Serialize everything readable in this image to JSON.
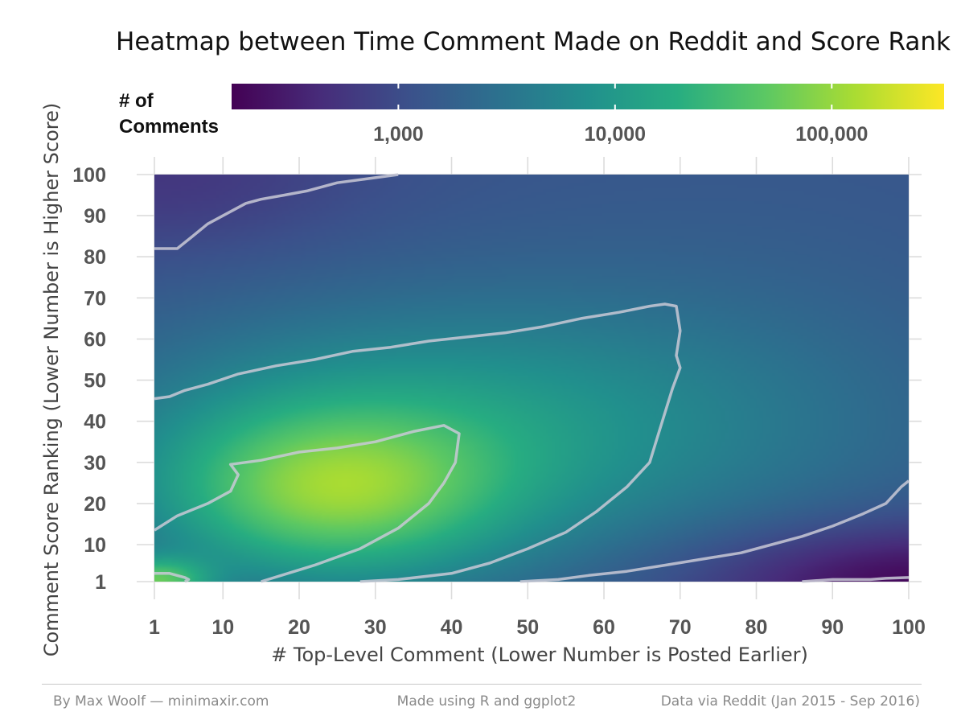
{
  "chart_data": {
    "type": "heatmap",
    "title": "Heatmap between Time Comment Made on Reddit and Score Rank",
    "xlabel": "# Top-Level Comment (Lower Number is Posted Earlier)",
    "ylabel": "Comment Score Ranking (Lower Number is Higher Score)",
    "xlim": [
      1,
      100
    ],
    "ylim": [
      1,
      100
    ],
    "x_ticks": [
      1,
      10,
      20,
      30,
      40,
      50,
      60,
      70,
      80,
      90,
      100
    ],
    "y_ticks": [
      1,
      10,
      20,
      30,
      40,
      50,
      60,
      70,
      80,
      90,
      100
    ],
    "x_tick_labels": [
      "1",
      "10",
      "20",
      "30",
      "40",
      "50",
      "60",
      "70",
      "80",
      "90",
      "100"
    ],
    "y_tick_labels": [
      "1",
      "10",
      "20",
      "30",
      "40",
      "50",
      "60",
      "70",
      "80",
      "90",
      "100"
    ],
    "legend": {
      "title_line1": "# of",
      "title_line2": "Comments",
      "scale": "log",
      "placement": "top",
      "range": [
        170,
        330000
      ],
      "tick_values": [
        1000,
        10000,
        100000
      ],
      "tick_labels": [
        "1,000",
        "10,000",
        "100,000"
      ]
    },
    "palette": [
      "#440154",
      "#472c7a",
      "#3b518b",
      "#2c718e",
      "#21908d",
      "#27ad81",
      "#5cc863",
      "#aadc32",
      "#fde725"
    ],
    "contour_color": "#c9c9d6",
    "contours": [
      {
        "name": "outer-top",
        "points": [
          [
            1,
            82
          ],
          [
            4,
            82
          ],
          [
            6,
            85
          ],
          [
            8,
            88
          ],
          [
            10,
            90
          ],
          [
            13,
            93
          ],
          [
            15,
            94
          ],
          [
            18,
            95
          ],
          [
            21,
            96
          ],
          [
            25,
            98
          ],
          [
            29,
            99
          ],
          [
            33,
            100
          ]
        ]
      },
      {
        "name": "upper-band",
        "points": [
          [
            1,
            45.5
          ],
          [
            3,
            46
          ],
          [
            5,
            47.5
          ],
          [
            8,
            49
          ],
          [
            12,
            51.5
          ],
          [
            17,
            53.5
          ],
          [
            22,
            55
          ],
          [
            27,
            57
          ],
          [
            32,
            58
          ],
          [
            37,
            59.5
          ],
          [
            42,
            60.5
          ],
          [
            47,
            61.5
          ],
          [
            52,
            63
          ],
          [
            57,
            65
          ],
          [
            62,
            66.5
          ],
          [
            66,
            68
          ],
          [
            68,
            68.5
          ],
          [
            69.5,
            68
          ],
          [
            70,
            62
          ],
          [
            69.5,
            56
          ],
          [
            70,
            53
          ],
          [
            69,
            48
          ],
          [
            68,
            42
          ],
          [
            67,
            36
          ],
          [
            66,
            30
          ],
          [
            63,
            24
          ],
          [
            59,
            18
          ],
          [
            55,
            13
          ],
          [
            50,
            9
          ],
          [
            45,
            5.5
          ],
          [
            40,
            3
          ],
          [
            33,
            1.5
          ],
          [
            28,
            1
          ]
        ]
      },
      {
        "name": "inner",
        "points": [
          [
            1,
            13.5
          ],
          [
            4,
            17
          ],
          [
            8,
            20
          ],
          [
            11,
            23
          ],
          [
            12,
            27
          ],
          [
            11,
            29.5
          ],
          [
            15,
            30.5
          ],
          [
            20,
            32.5
          ],
          [
            25,
            33.5
          ],
          [
            30,
            35
          ],
          [
            35,
            37.5
          ],
          [
            39,
            39
          ],
          [
            41,
            37
          ],
          [
            40.5,
            30
          ],
          [
            39,
            25
          ],
          [
            37,
            20
          ],
          [
            33,
            14
          ],
          [
            28,
            9
          ],
          [
            22,
            5
          ],
          [
            15,
            1
          ]
        ]
      },
      {
        "name": "peak",
        "points": [
          [
            1,
            3
          ],
          [
            3,
            3
          ],
          [
            5,
            2
          ],
          [
            5.5,
            1.5
          ],
          [
            5,
            1
          ]
        ]
      },
      {
        "name": "lower-band",
        "points": [
          [
            49,
            1
          ],
          [
            54,
            1.5
          ],
          [
            58,
            2.5
          ],
          [
            63,
            3.5
          ],
          [
            68,
            5
          ],
          [
            73,
            6.5
          ],
          [
            78,
            8
          ],
          [
            82,
            10
          ],
          [
            86,
            12
          ],
          [
            90,
            14.5
          ],
          [
            94,
            17.5
          ],
          [
            97,
            20
          ],
          [
            99,
            24
          ],
          [
            100,
            25.5
          ]
        ]
      },
      {
        "name": "lower-right",
        "points": [
          [
            86,
            1
          ],
          [
            90,
            1.5
          ],
          [
            95,
            1.5
          ],
          [
            97,
            1.8
          ],
          [
            100,
            2
          ]
        ]
      }
    ]
  },
  "footer": {
    "left": "By Max Woolf — minimaxir.com",
    "center": "Made using R and ggplot2",
    "right": "Data via Reddit (Jan 2015 - Sep 2016)"
  }
}
